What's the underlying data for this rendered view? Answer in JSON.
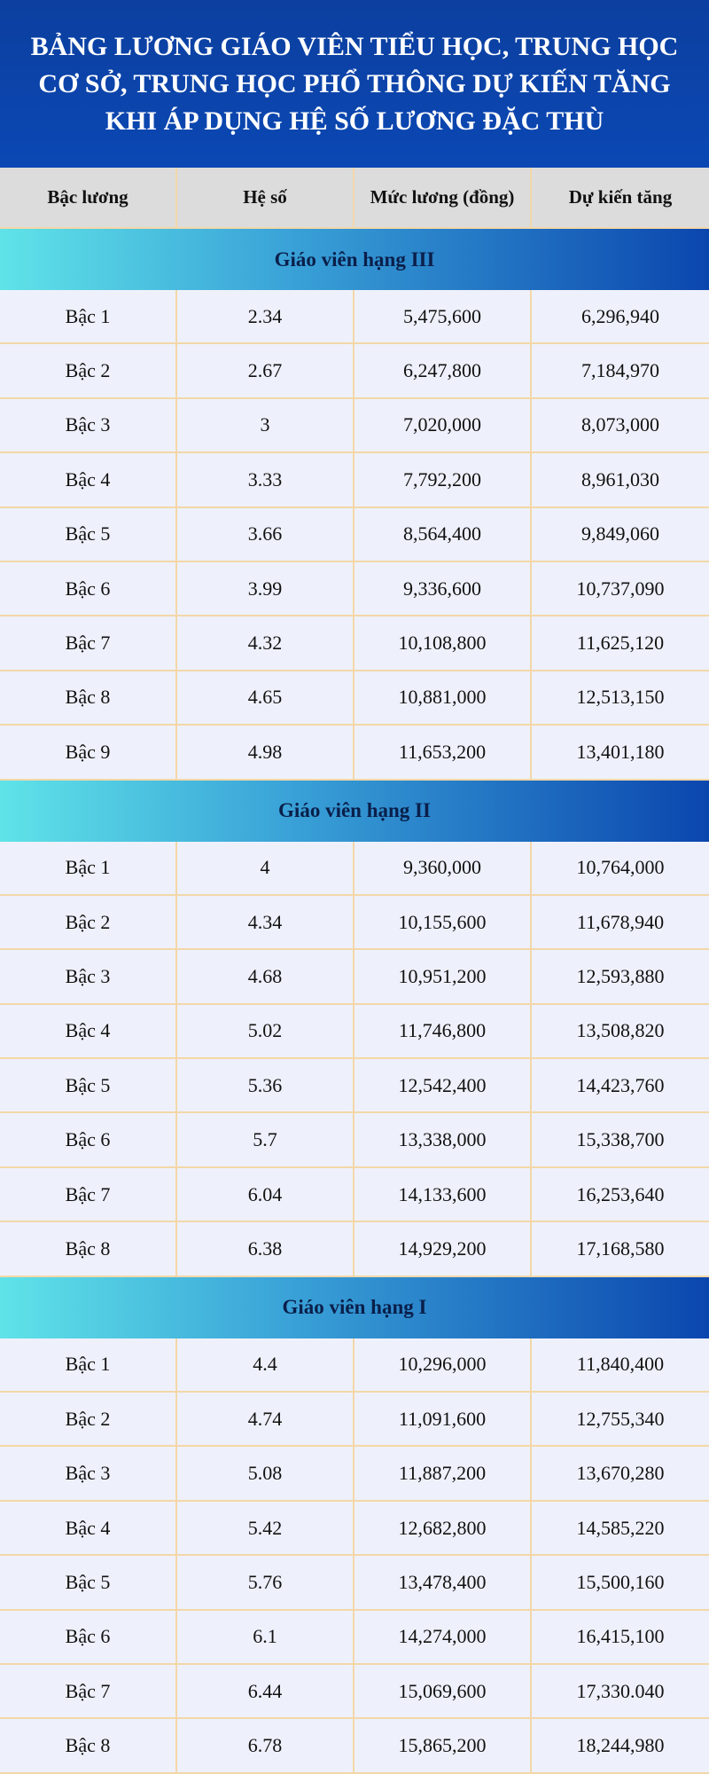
{
  "header": {
    "title": "BẢNG LƯƠNG GIÁO VIÊN TIỂU HỌC, TRUNG HỌC CƠ SỞ, TRUNG HỌC PHỔ THÔNG DỰ KIẾN TĂNG KHI ÁP DỤNG HỆ SỐ LƯƠNG ĐẶC THÙ"
  },
  "table": {
    "columns": [
      "Bậc lương",
      "Hệ số",
      "Mức lương (đồng)",
      "Dự kiến tăng"
    ],
    "sections": [
      {
        "title": "Giáo viên hạng III",
        "rows": [
          [
            "Bậc 1",
            "2.34",
            "5,475,600",
            "6,296,940"
          ],
          [
            "Bậc 2",
            "2.67",
            "6,247,800",
            "7,184,970"
          ],
          [
            "Bậc 3",
            "3",
            "7,020,000",
            "8,073,000"
          ],
          [
            "Bậc 4",
            "3.33",
            "7,792,200",
            "8,961,030"
          ],
          [
            "Bậc 5",
            "3.66",
            "8,564,400",
            "9,849,060"
          ],
          [
            "Bậc 6",
            "3.99",
            "9,336,600",
            "10,737,090"
          ],
          [
            "Bậc 7",
            "4.32",
            "10,108,800",
            "11,625,120"
          ],
          [
            "Bậc 8",
            "4.65",
            "10,881,000",
            "12,513,150"
          ],
          [
            "Bậc 9",
            "4.98",
            "11,653,200",
            "13,401,180"
          ]
        ]
      },
      {
        "title": "Giáo viên hạng II",
        "rows": [
          [
            "Bậc 1",
            "4",
            "9,360,000",
            "10,764,000"
          ],
          [
            "Bậc 2",
            "4.34",
            "10,155,600",
            "11,678,940"
          ],
          [
            "Bậc 3",
            "4.68",
            "10,951,200",
            "12,593,880"
          ],
          [
            "Bậc 4",
            "5.02",
            "11,746,800",
            "13,508,820"
          ],
          [
            "Bậc 5",
            "5.36",
            "12,542,400",
            "14,423,760"
          ],
          [
            "Bậc 6",
            "5.7",
            "13,338,000",
            "15,338,700"
          ],
          [
            "Bậc 7",
            "6.04",
            "14,133,600",
            "16,253,640"
          ],
          [
            "Bậc 8",
            "6.38",
            "14,929,200",
            "17,168,580"
          ]
        ]
      },
      {
        "title": "Giáo viên hạng I",
        "rows": [
          [
            "Bậc 1",
            "4.4",
            "10,296,000",
            "11,840,400"
          ],
          [
            "Bậc 2",
            "4.74",
            "11,091,600",
            "12,755,340"
          ],
          [
            "Bậc 3",
            "5.08",
            "11,887,200",
            "13,670,280"
          ],
          [
            "Bậc 4",
            "5.42",
            "12,682,800",
            "14,585,220"
          ],
          [
            "Bậc 5",
            "5.76",
            "13,478,400",
            "15,500,160"
          ],
          [
            "Bậc 6",
            "6.1",
            "14,274,000",
            "16,415,100"
          ],
          [
            "Bậc 7",
            "6.44",
            "15,069,600",
            "17,330.040"
          ],
          [
            "Bậc 8",
            "6.78",
            "15,865,200",
            "18,244,980"
          ]
        ]
      }
    ]
  }
}
